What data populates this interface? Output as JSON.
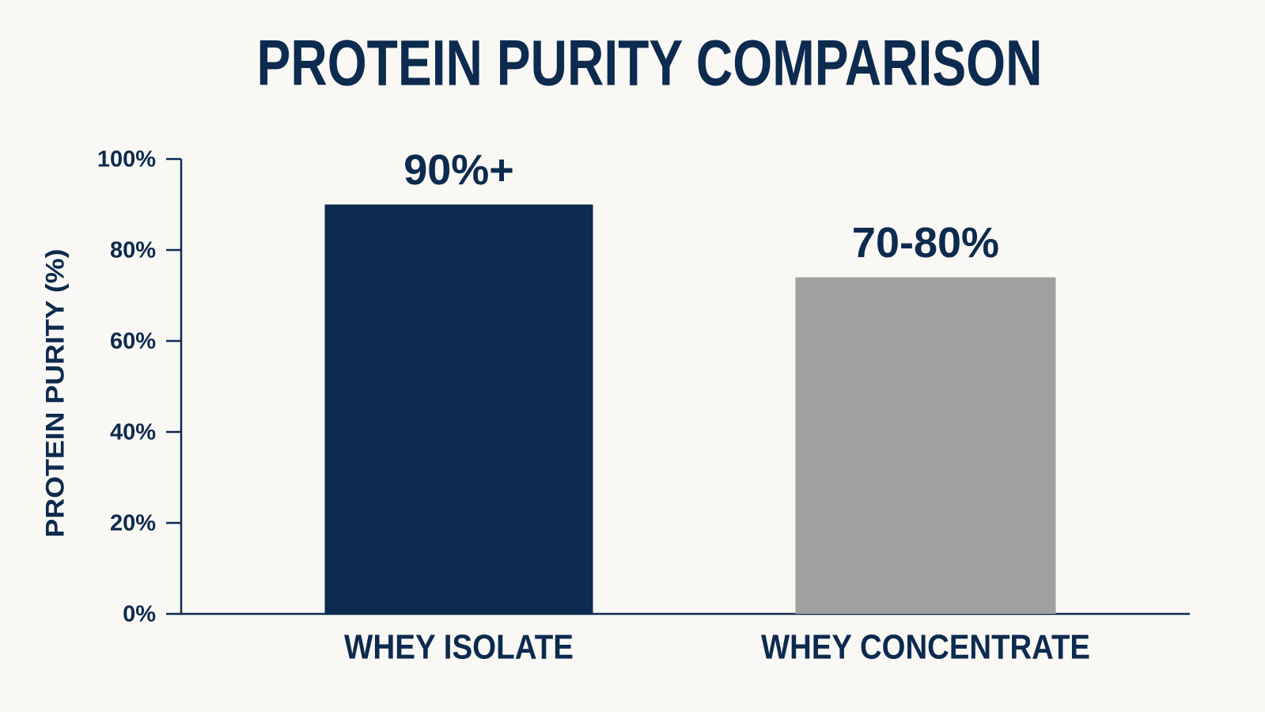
{
  "chart_data": {
    "type": "bar",
    "title": "PROTEIN PURITY COMPARISON",
    "y_label": "PROTEIN PURITY (%)",
    "categories": [
      "WHEY ISOLATE",
      "WHEY CONCENTRATE"
    ],
    "values": [
      90,
      74
    ],
    "value_labels": [
      "90%+",
      "70-80%"
    ],
    "colors": [
      "#0d2a4f",
      "#a0a0a0"
    ],
    "ylim": [
      0,
      100
    ],
    "yticks": [
      {
        "value": 0,
        "label": "0%"
      },
      {
        "value": 20,
        "label": "20%"
      },
      {
        "value": 40,
        "label": "40%"
      },
      {
        "value": 60,
        "label": "60%"
      },
      {
        "value": 80,
        "label": "80%"
      },
      {
        "value": 100,
        "label": "100%"
      }
    ],
    "grid": false
  }
}
